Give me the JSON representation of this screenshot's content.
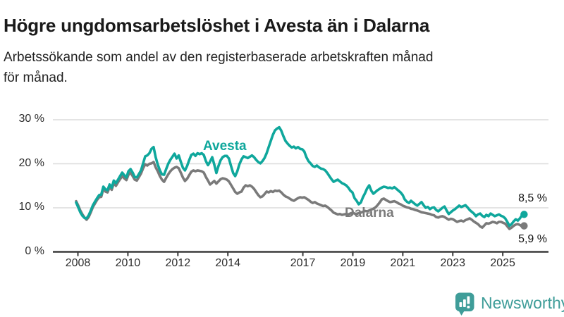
{
  "header": {
    "title": "Högre ungdomsarbetslöshet i Avesta än i Dalarna",
    "subtitle": "Arbetssökande som andel av den registerbaserade arbetskraften månad för månad.",
    "subtitle_lines": [
      "Arbetssökande som andel av den registerbaserade arbetskraften månad",
      "för månad."
    ]
  },
  "colors": {
    "avesta": "#0fa79c",
    "dalarna": "#7a7a7a",
    "grid": "#dcdcdc",
    "axis": "#3b3b3b",
    "title": "#1a1a1a",
    "brand": "#3f9d99"
  },
  "chart_data": {
    "type": "line",
    "title": "Högre ungdomsarbetslöshet i Avesta än i Dalarna",
    "subtitle": "Arbetssökande som andel av den registerbaserade arbetskraften månad för månad.",
    "unit": "%",
    "x_start": "2008-01",
    "x_end": "2025-11",
    "x_frequency": "monthly",
    "ylim": [
      0,
      32
    ],
    "y_ticks": [
      0,
      10,
      20,
      30
    ],
    "y_tick_labels": [
      "0 %",
      "10 %",
      "20 %",
      "30 %"
    ],
    "x_tick_years": [
      2008,
      2010,
      2012,
      2014,
      2017,
      2019,
      2021,
      2023,
      2025
    ],
    "x_tick_labels": [
      "2008",
      "2010",
      "2012",
      "2014",
      "2017",
      "2019",
      "2021",
      "2023",
      "2025"
    ],
    "grid": "horizontal",
    "legend_position": "inline-labels",
    "series": [
      {
        "name": "Dalarna",
        "color": "#7a7a7a",
        "end_label": "5,9 %",
        "end_value": 5.9,
        "values": [
          11.5,
          10.5,
          9.4,
          8.5,
          7.8,
          7.3,
          7.9,
          9.0,
          10.2,
          11.0,
          11.8,
          12.4,
          12.5,
          14.3,
          13.7,
          13.5,
          14.7,
          14.1,
          15.6,
          15.0,
          15.8,
          16.5,
          17.2,
          16.7,
          16.3,
          17.5,
          18.0,
          17.2,
          16.4,
          16.2,
          17.0,
          17.8,
          19.0,
          19.9,
          19.6,
          20.0,
          20.1,
          20.4,
          19.2,
          18.3,
          17.2,
          16.4,
          15.9,
          16.8,
          17.6,
          18.3,
          18.8,
          19.1,
          19.3,
          19.0,
          18.0,
          16.9,
          16.1,
          16.6,
          17.4,
          18.2,
          18.5,
          18.3,
          18.5,
          18.4,
          18.3,
          18.0,
          17.0,
          16.2,
          15.3,
          15.7,
          16.1,
          15.5,
          16.0,
          16.5,
          16.7,
          16.6,
          16.4,
          16.0,
          15.2,
          14.4,
          13.6,
          13.2,
          13.5,
          13.7,
          14.6,
          15.1,
          14.9,
          15.1,
          14.8,
          14.3,
          13.6,
          12.9,
          12.4,
          12.6,
          13.1,
          13.7,
          13.5,
          13.8,
          13.6,
          13.9,
          13.8,
          13.9,
          13.5,
          13.0,
          12.6,
          12.4,
          12.1,
          11.8,
          11.6,
          11.9,
          12.2,
          12.4,
          12.3,
          12.4,
          12.1,
          11.8,
          11.4,
          11.1,
          11.3,
          11.0,
          10.8,
          10.6,
          10.4,
          10.5,
          10.2,
          9.8,
          9.4,
          8.9,
          8.7,
          8.5,
          8.6,
          8.4,
          8.5,
          8.6,
          8.5,
          8.7,
          8.9,
          8.7,
          8.6,
          8.8,
          8.9,
          9.1,
          9.3,
          9.2,
          9.4,
          9.6,
          9.8,
          10.1,
          10.6,
          11.2,
          11.9,
          12.1,
          11.8,
          11.5,
          11.3,
          11.4,
          11.5,
          11.3,
          11.0,
          10.8,
          10.5,
          10.3,
          10.1,
          10.0,
          9.8,
          9.7,
          9.5,
          9.4,
          9.2,
          9.0,
          8.9,
          8.8,
          8.7,
          8.6,
          8.4,
          8.3,
          7.9,
          7.8,
          8.0,
          8.1,
          7.9,
          7.6,
          7.3,
          7.5,
          7.4,
          7.1,
          6.8,
          7.0,
          7.1,
          6.9,
          7.2,
          7.4,
          7.6,
          7.3,
          6.9,
          6.6,
          6.3,
          5.8,
          5.5,
          6.0,
          6.5,
          6.4,
          6.6,
          6.8,
          6.7,
          6.5,
          6.8,
          6.8,
          6.6,
          6.4,
          5.8,
          5.2,
          5.5,
          5.9,
          6.2,
          6.3,
          6.1,
          5.8,
          5.9
        ]
      },
      {
        "name": "Avesta",
        "color": "#0fa79c",
        "end_label": "8,5 %",
        "end_value": 8.5,
        "values": [
          11.2,
          10.1,
          9.0,
          8.2,
          7.7,
          7.6,
          8.3,
          9.4,
          10.6,
          11.4,
          12.2,
          12.9,
          13.0,
          14.8,
          14.2,
          14.0,
          15.3,
          14.6,
          16.2,
          15.6,
          16.4,
          17.2,
          18.0,
          17.4,
          16.9,
          18.3,
          18.8,
          18.0,
          17.0,
          16.9,
          17.7,
          18.5,
          20.1,
          21.7,
          21.9,
          22.4,
          23.4,
          23.8,
          21.5,
          19.8,
          18.5,
          17.6,
          17.5,
          18.8,
          20.0,
          20.9,
          21.6,
          22.3,
          21.2,
          21.9,
          20.5,
          19.1,
          18.5,
          19.5,
          20.8,
          22.0,
          22.3,
          21.8,
          22.4,
          22.2,
          22.4,
          22.0,
          20.6,
          19.7,
          20.5,
          21.5,
          19.8,
          17.9,
          19.5,
          20.8,
          21.5,
          21.8,
          21.8,
          21.2,
          19.5,
          17.9,
          17.2,
          18.3,
          19.9,
          21.0,
          21.7,
          21.5,
          21.3,
          21.6,
          21.9,
          21.5,
          20.9,
          20.4,
          20.1,
          20.6,
          21.3,
          22.4,
          23.8,
          25.2,
          26.6,
          27.6,
          28.0,
          28.3,
          27.5,
          26.3,
          25.2,
          24.6,
          24.1,
          23.7,
          23.9,
          23.5,
          23.8,
          23.4,
          23.3,
          22.8,
          21.5,
          20.6,
          20.1,
          19.5,
          19.3,
          19.6,
          19.2,
          18.9,
          18.8,
          18.5,
          17.9,
          17.2,
          16.5,
          15.9,
          16.2,
          16.4,
          16.0,
          15.6,
          15.4,
          15.1,
          14.6,
          13.9,
          13.5,
          12.2,
          11.6,
          10.8,
          11.2,
          12.4,
          13.3,
          14.4,
          15.1,
          13.9,
          13.2,
          13.6,
          14.0,
          14.3,
          14.6,
          14.8,
          14.7,
          14.5,
          14.6,
          14.4,
          14.7,
          14.3,
          13.9,
          13.5,
          12.9,
          11.9,
          11.4,
          11.1,
          11.6,
          11.2,
          10.8,
          10.5,
          10.9,
          11.3,
          10.6,
          10.0,
          10.2,
          9.7,
          10.0,
          10.1,
          9.5,
          9.2,
          9.6,
          10.0,
          10.3,
          9.4,
          8.6,
          9.0,
          9.4,
          9.7,
          10.1,
          10.5,
          10.2,
          10.4,
          10.6,
          10.1,
          9.5,
          9.1,
          8.7,
          8.1,
          8.5,
          8.7,
          8.2,
          7.9,
          8.4,
          8.1,
          8.7,
          8.4,
          8.1,
          8.3,
          8.5,
          8.2,
          8.0,
          7.6,
          6.8,
          5.9,
          6.3,
          6.9,
          7.4,
          7.1,
          7.6,
          8.3,
          8.5
        ]
      }
    ]
  },
  "footer": {
    "brand": "Newsworthy"
  }
}
